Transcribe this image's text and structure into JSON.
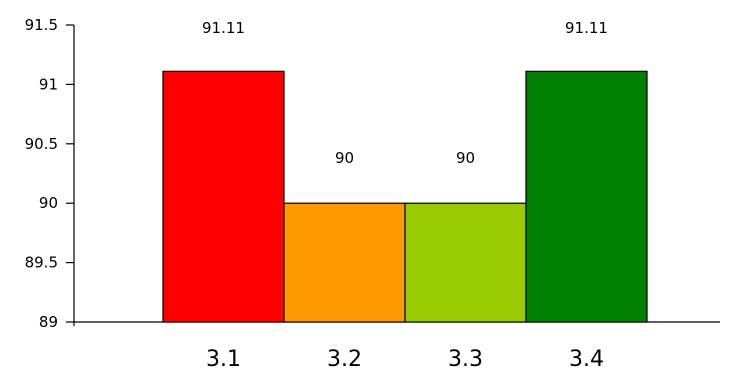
{
  "chart_data": {
    "type": "bar",
    "title": "",
    "xlabel": "",
    "ylabel": "",
    "categories": [
      "3.1",
      "3.2",
      "3.3",
      "3.4"
    ],
    "values": [
      91.11,
      90,
      90,
      91.11
    ],
    "data_labels": [
      "91.11",
      "90",
      "90",
      "91.11"
    ],
    "colors": [
      "#ff0000",
      "#ff9900",
      "#99cc00",
      "#008000"
    ],
    "ylim": [
      89,
      91.5
    ],
    "yticks": [
      89,
      89.5,
      90,
      90.5,
      91,
      91.5
    ],
    "ytick_labels": [
      "89",
      "89.5",
      "90",
      "90.5",
      "91",
      "91.5"
    ],
    "bar_gap": 0,
    "grid": false,
    "legend": "none"
  }
}
